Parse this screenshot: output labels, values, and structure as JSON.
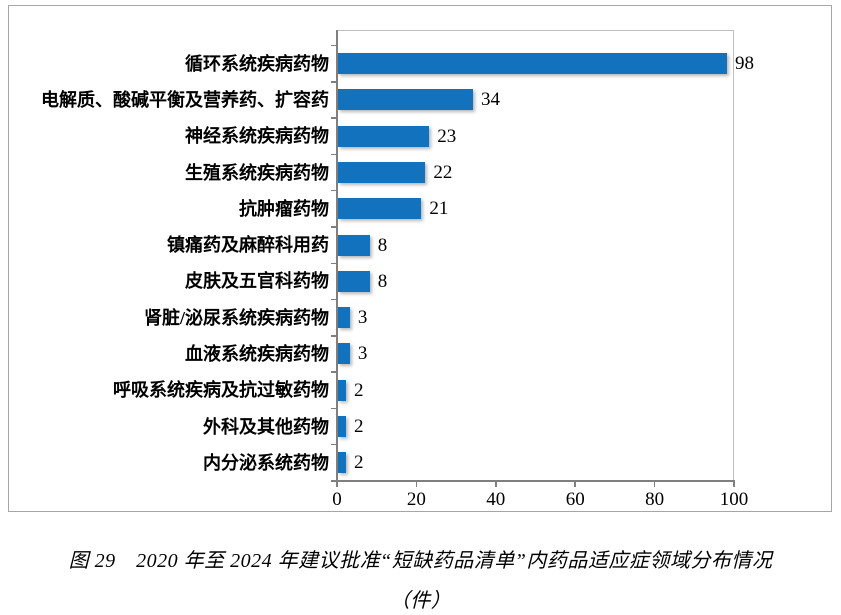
{
  "chart_data": {
    "type": "bar",
    "orientation": "horizontal",
    "categories": [
      "循环系统疾病药物",
      "电解质、酸碱平衡及营养药、扩容药",
      "神经系统疾病药物",
      "生殖系统疾病药物",
      "抗肿瘤药物",
      "镇痛药及麻醉科用药",
      "皮肤及五官科药物",
      "肾脏/泌尿系统疾病药物",
      "血液系统疾病药物",
      "呼吸系统疾病及抗过敏药物",
      "外科及其他药物",
      "内分泌系统药物"
    ],
    "values": [
      98,
      34,
      23,
      22,
      21,
      8,
      8,
      3,
      3,
      2,
      2,
      2
    ],
    "x_ticks": [
      0,
      20,
      40,
      60,
      80,
      100
    ],
    "xlim": [
      0,
      100
    ],
    "bar_color": "#1272be",
    "value_labels_shown": true,
    "grid": false,
    "legend_position": "none",
    "title": ""
  },
  "caption": {
    "line1": "图 29　2020 年至 2024 年建议批准“短缺药品清单”内药品适应症领域分布情况",
    "line2": "（件）"
  }
}
